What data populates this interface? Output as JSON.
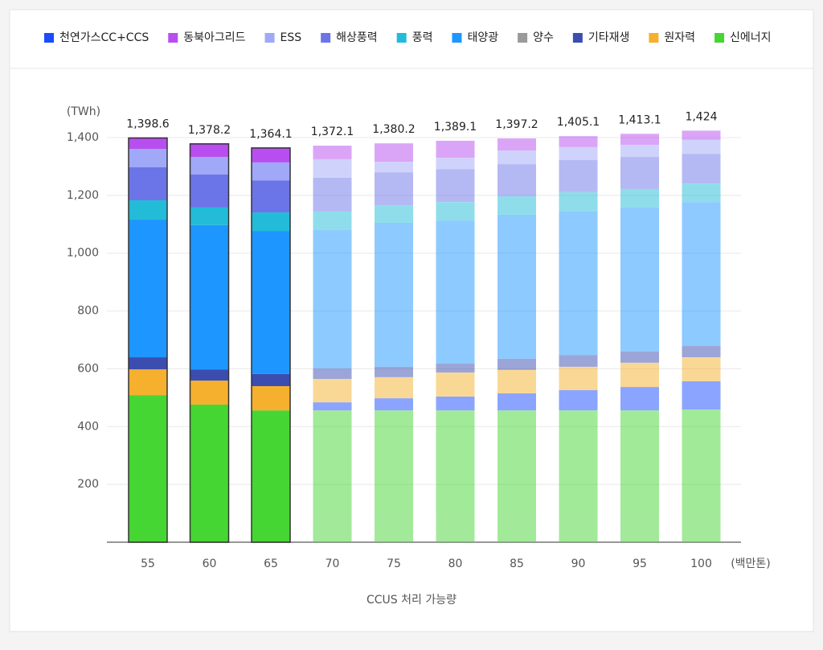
{
  "chart_data": {
    "type": "stacked_bar",
    "categories": [
      "55",
      "60",
      "65",
      "70",
      "75",
      "80",
      "85",
      "90",
      "95",
      "100"
    ],
    "series": [
      {
        "name": "천연가스CC+CCS",
        "color": "#1a4bff",
        "values": [
          0,
          0,
          0,
          28,
          42,
          48,
          59,
          70,
          81,
          98
        ]
      },
      {
        "name": "동북아그리드",
        "color": "#b84ef0",
        "values": [
          38,
          45,
          50,
          47,
          64,
          59,
          42,
          38,
          38,
          32
        ]
      },
      {
        "name": "ESS",
        "color": "#a0a8f8",
        "values": [
          64,
          61,
          62,
          64,
          36,
          39,
          47,
          45,
          42,
          48
        ]
      },
      {
        "name": "해상풍력",
        "color": "#6b75e8",
        "values": [
          114,
          114,
          111,
          117,
          114,
          114,
          111,
          111,
          111,
          103
        ]
      },
      {
        "name": "풍력",
        "color": "#22bcd8",
        "values": [
          67,
          61,
          64,
          64,
          61,
          64,
          64,
          67,
          64,
          64
        ]
      },
      {
        "name": "태양광",
        "color": "#1e96ff",
        "values": [
          476,
          499,
          495,
          479,
          498,
          495,
          498,
          496,
          498,
          498
        ]
      },
      {
        "name": "양수",
        "color": "#9a9a9a",
        "values": [
          0,
          0,
          0,
          0,
          0,
          0,
          0,
          0,
          0,
          0
        ]
      },
      {
        "name": "기타재생",
        "color": "#3c4db0",
        "values": [
          42,
          39,
          42,
          36,
          36,
          31,
          39,
          41,
          39,
          39
        ]
      },
      {
        "name": "원자력",
        "color": "#f5b02e",
        "values": [
          89,
          83,
          84,
          81,
          73,
          83,
          81,
          81,
          84,
          83
        ]
      },
      {
        "name": "신에너지",
        "color": "#46d633",
        "values": [
          509,
          476,
          456,
          456,
          456,
          456,
          456,
          456,
          456,
          459
        ]
      }
    ],
    "totals": [
      1398.6,
      1378.2,
      1364.1,
      1372.1,
      1380.2,
      1389.1,
      1397.2,
      1405.1,
      1413.1,
      1424
    ],
    "totals_value_labels": [
      "1,398.6",
      "1,378.2",
      "1,364.1",
      "1,372.1",
      "1,380.2",
      "1,389.1",
      "1,397.2",
      "1,405.1",
      "1,413.1",
      "1,424"
    ],
    "y_axis_label": "(TWh)",
    "x_unit_label": "(백만톤)",
    "x_axis_label": "CCUS 처리 가능량",
    "ylim": [
      0,
      1400
    ],
    "yticks": [
      200,
      400,
      600,
      800,
      {
        "value": 1000,
        "label": "1,000"
      },
      {
        "value": 1200,
        "label": "1,200"
      },
      {
        "value": 1400,
        "label": "1,400"
      }
    ],
    "grid": true
  }
}
